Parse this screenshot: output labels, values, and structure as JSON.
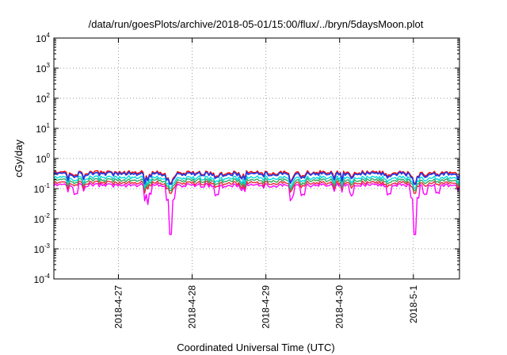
{
  "chart_data": {
    "type": "line",
    "title": "/data/run/goesPlots/archive/2018-05-01/15:00/flux/../bryn/5daysMoon.plot",
    "xlabel": "Coordinated Universal Time (UTC)",
    "ylabel": "cGy/day",
    "y_scale": "log",
    "ylim": [
      0.0001,
      10000
    ],
    "y_ticks": [
      {
        "base": "10",
        "exp": "-4"
      },
      {
        "base": "10",
        "exp": "-3"
      },
      {
        "base": "10",
        "exp": "-2"
      },
      {
        "base": "10",
        "exp": "-1"
      },
      {
        "base": "10",
        "exp": "0"
      },
      {
        "base": "10",
        "exp": "1"
      },
      {
        "base": "10",
        "exp": "2"
      },
      {
        "base": "10",
        "exp": "3"
      },
      {
        "base": "10",
        "exp": "4"
      }
    ],
    "xlim": [
      "2018-04-26 03:00",
      "2018-05-01 15:00"
    ],
    "x_ticks": [
      "2018-4-27",
      "2018-4-28",
      "2018-4-29",
      "2018-4-30",
      "2018-5-1"
    ],
    "grid": true,
    "series_colors": [
      "#ff00ff",
      "#e8293a",
      "#30a860",
      "#00d8e0",
      "#ff0000",
      "#2a3ae0"
    ],
    "series_levels": [
      0.13,
      0.155,
      0.19,
      0.23,
      0.34,
      0.31
    ],
    "dips": [
      {
        "x": "2018-04-27 17:00",
        "min": 0.003
      },
      {
        "x": "2018-05-01 00:30",
        "min": 0.003
      }
    ]
  }
}
